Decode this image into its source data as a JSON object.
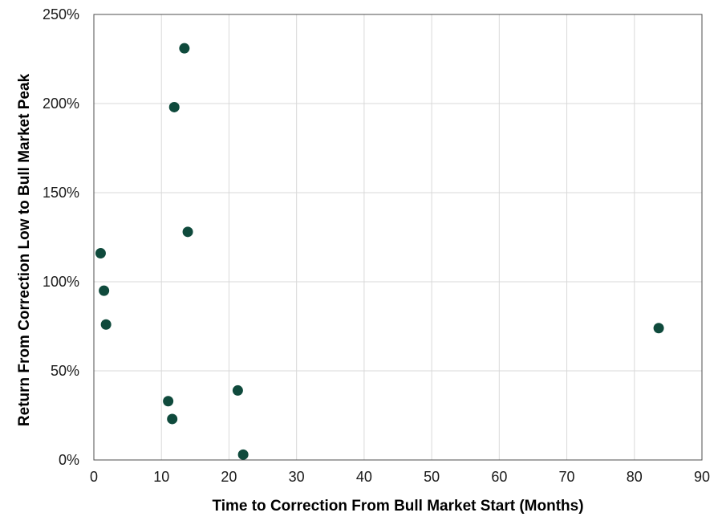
{
  "chart_data": {
    "type": "scatter",
    "title": "",
    "xlabel": "Time to Correction From Bull Market Start (Months)",
    "ylabel": "Return From Correction Low to Bull Market Peak",
    "xlim": [
      0,
      90
    ],
    "ylim": [
      0,
      250
    ],
    "x_ticks": [
      0,
      10,
      20,
      30,
      40,
      50,
      60,
      70,
      80,
      90
    ],
    "y_ticks": [
      0,
      50,
      100,
      150,
      200,
      250
    ],
    "x_tick_labels": [
      "0",
      "10",
      "20",
      "30",
      "40",
      "50",
      "60",
      "70",
      "80",
      "90"
    ],
    "y_tick_labels": [
      "0%",
      "50%",
      "100%",
      "150%",
      "200%",
      "250%"
    ],
    "y_unit": "%",
    "grid": true,
    "marker_color": "#0f4a3c",
    "series": [
      {
        "points": [
          {
            "x": 1.0,
            "y": 116
          },
          {
            "x": 1.5,
            "y": 95
          },
          {
            "x": 1.8,
            "y": 76
          },
          {
            "x": 11.0,
            "y": 33
          },
          {
            "x": 11.6,
            "y": 23
          },
          {
            "x": 11.9,
            "y": 198
          },
          {
            "x": 13.4,
            "y": 231
          },
          {
            "x": 13.9,
            "y": 128
          },
          {
            "x": 21.3,
            "y": 39
          },
          {
            "x": 22.1,
            "y": 3
          },
          {
            "x": 83.6,
            "y": 74
          }
        ]
      }
    ]
  }
}
